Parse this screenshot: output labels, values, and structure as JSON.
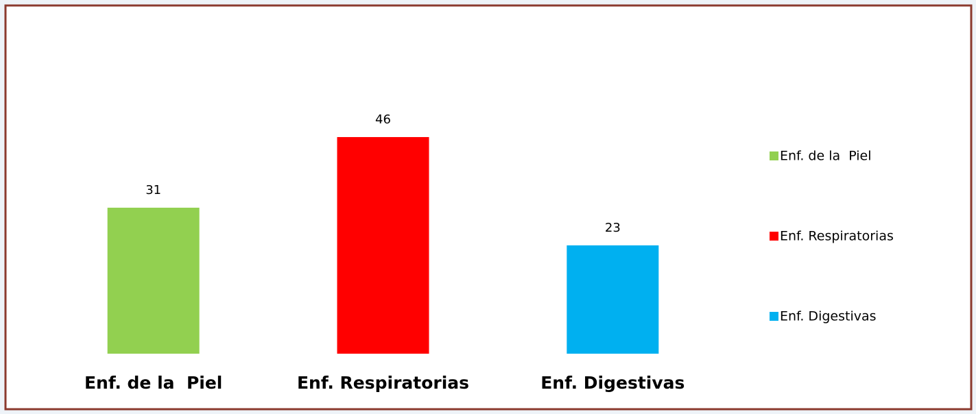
{
  "chart_data": {
    "type": "bar",
    "categories": [
      "Enf. de la  Piel",
      "Enf. Respiratorias",
      "Enf. Digestivas"
    ],
    "values": [
      31,
      46,
      23
    ],
    "colors": [
      "#92d050",
      "#ff0000",
      "#00b0f0"
    ],
    "legend": "right"
  }
}
